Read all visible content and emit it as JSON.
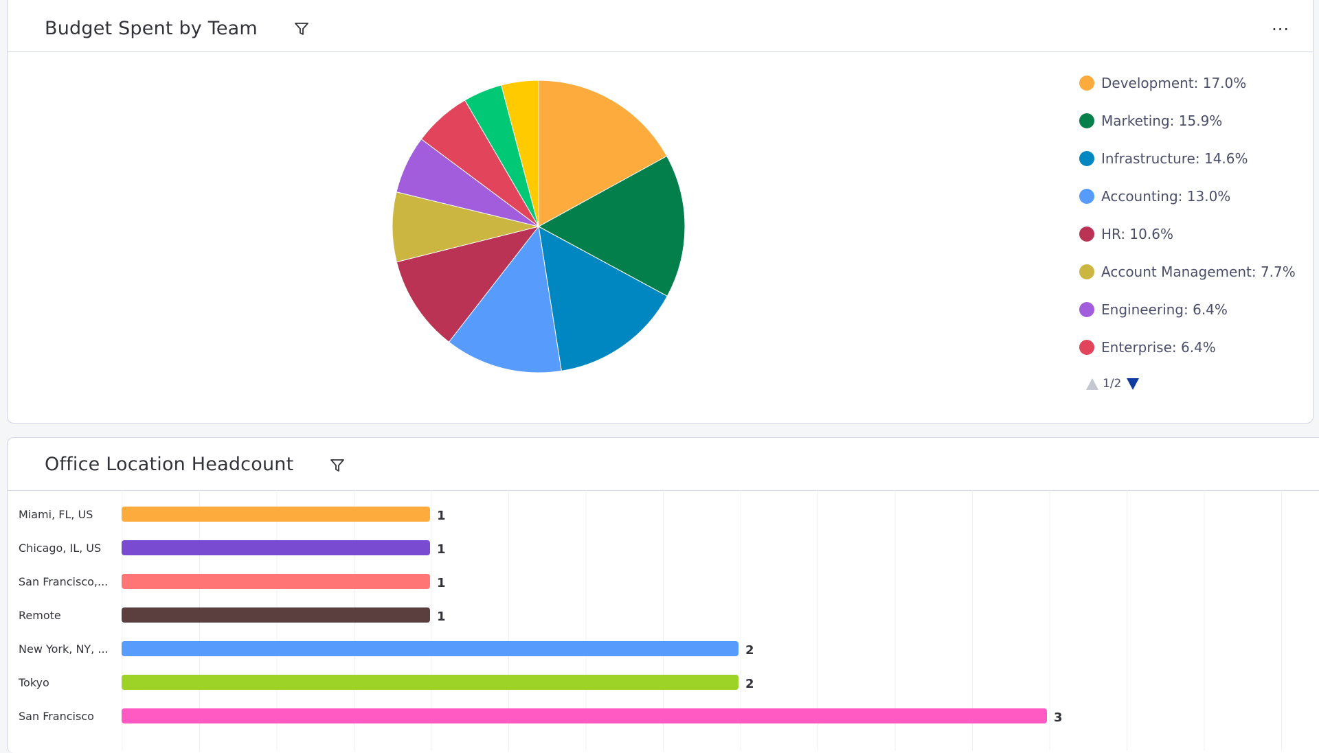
{
  "widgets": {
    "budget": {
      "title": "Budget Spent by Team",
      "menu_label": "···",
      "filter_icon": "filter-icon",
      "legend": [
        {
          "label": "Development: 17.0%",
          "color": "#fdab3d"
        },
        {
          "label": "Marketing: 15.9%",
          "color": "#037f4c"
        },
        {
          "label": "Infrastructure: 14.6%",
          "color": "#0086c0"
        },
        {
          "label": "Accounting: 13.0%",
          "color": "#579bfc"
        },
        {
          "label": "HR: 10.6%",
          "color": "#bb3354"
        },
        {
          "label": "Account Management: 7.7%",
          "color": "#cab641"
        },
        {
          "label": "Engineering: 6.4%",
          "color": "#a25ddc"
        },
        {
          "label": "Enterprise: 6.4%",
          "color": "#e2445c"
        }
      ],
      "pager": "1/2"
    },
    "office": {
      "title": "Office Location Headcount",
      "filter_icon": "filter-icon"
    }
  },
  "chart_data": [
    {
      "type": "pie",
      "slices": [
        {
          "name": "Development",
          "value": 17.0,
          "color": "#fdab3d"
        },
        {
          "name": "Marketing",
          "value": 15.9,
          "color": "#037f4c"
        },
        {
          "name": "Infrastructure",
          "value": 14.6,
          "color": "#0086c0"
        },
        {
          "name": "Accounting",
          "value": 13.0,
          "color": "#579bfc"
        },
        {
          "name": "HR",
          "value": 10.6,
          "color": "#bb3354"
        },
        {
          "name": "Account Management",
          "value": 7.7,
          "color": "#cab641"
        },
        {
          "name": "Engineering",
          "value": 6.4,
          "color": "#a25ddc"
        },
        {
          "name": "Enterprise",
          "value": 6.4,
          "color": "#e2445c"
        },
        {
          "value": 4.3,
          "color": "#00c875"
        },
        {
          "value": 4.1,
          "color": "#ffcb00"
        }
      ],
      "legend_placement": "right"
    },
    {
      "type": "bar",
      "orientation": "horizontal",
      "categories": [
        "Miami, FL, US",
        "Chicago, IL, US",
        "San Francisco,...",
        "Remote",
        "New York, NY, ...",
        "Tokyo",
        "San Francisco"
      ],
      "values": [
        1,
        1,
        1,
        1,
        2,
        2,
        3
      ],
      "colors": [
        "#fdab3d",
        "#784bd1",
        "#ff7575",
        "#5b3f3f",
        "#579bfc",
        "#9cd326",
        "#ff5ac4"
      ],
      "xlim": [
        0,
        4
      ],
      "grid": true
    }
  ]
}
